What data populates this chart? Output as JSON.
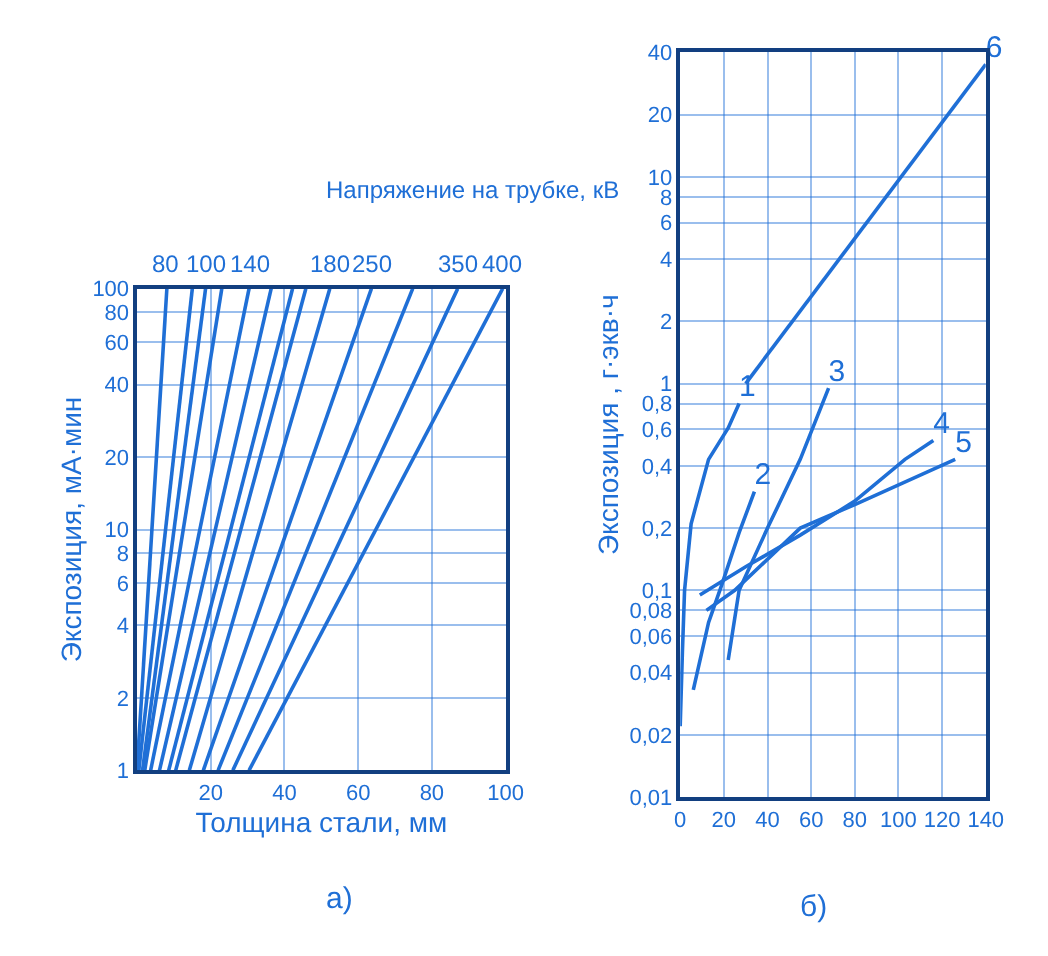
{
  "chart_data": [
    {
      "type": "line",
      "title": "Напряжение на трубке, кВ",
      "xlabel": "Толщина стали, мм",
      "ylabel": "Экспозиция, мА·мин",
      "annotations": [
        "а)",
        {
          "text": "80",
          "x": 8.1,
          "y": 100
        },
        {
          "text": "100",
          "x": 18.6,
          "y": 100
        },
        {
          "text": "140",
          "x": 30.4,
          "y": 100
        },
        {
          "text": "180",
          "x": 52.3,
          "y": 100
        },
        {
          "text": "250",
          "x": 63.6,
          "y": 100
        },
        {
          "text": "350",
          "x": 87,
          "y": 100
        },
        {
          "text": "400",
          "x": 99.2,
          "y": 100
        }
      ],
      "log": "y",
      "grid": true,
      "xlim": [
        0,
        100
      ],
      "xticks": [
        {
          "value": 0,
          "label": null
        },
        20,
        40,
        60,
        80,
        100
      ],
      "ylim": [
        1,
        100
      ],
      "yticks": [
        1,
        2,
        4,
        6,
        8,
        10,
        20,
        40,
        60,
        80,
        100
      ],
      "series": [
        {
          "color": "#1f6fd6",
          "x": [
            0,
            8.1
          ],
          "values": [
            1,
            100
          ]
        },
        {
          "color": "#1f6fd6",
          "x": [
            0.5,
            15
          ],
          "values": [
            1,
            100
          ]
        },
        {
          "color": "#1f6fd6",
          "x": [
            1.5,
            18.6
          ],
          "values": [
            1,
            100
          ]
        },
        {
          "color": "#1f6fd6",
          "x": [
            2.1,
            23
          ],
          "values": [
            1,
            100
          ]
        },
        {
          "color": "#1f6fd6",
          "x": [
            3.7,
            30.4
          ],
          "values": [
            1,
            100
          ]
        },
        {
          "color": "#1f6fd6",
          "x": [
            6.1,
            36.4
          ],
          "values": [
            1,
            100
          ]
        },
        {
          "color": "#1f6fd6",
          "x": [
            8.6,
            42.2
          ],
          "values": [
            1,
            100
          ]
        },
        {
          "color": "#1f6fd6",
          "x": [
            10.5,
            45.8
          ],
          "values": [
            1,
            100
          ]
        },
        {
          "color": "#1f6fd6",
          "x": [
            14.2,
            52.3
          ],
          "values": [
            1,
            100
          ]
        },
        {
          "color": "#1f6fd6",
          "x": [
            18,
            63.6
          ],
          "values": [
            1,
            100
          ]
        },
        {
          "color": "#1f6fd6",
          "x": [
            22,
            74.8
          ],
          "values": [
            1,
            100
          ]
        },
        {
          "color": "#1f6fd6",
          "x": [
            26,
            87
          ],
          "values": [
            1,
            100
          ]
        },
        {
          "color": "#1f6fd6",
          "x": [
            30.4,
            99.2
          ],
          "values": [
            1,
            100
          ]
        }
      ]
    },
    {
      "type": "line",
      "ylabel": "Экспозиция , г·экв·ч",
      "annotations": [
        "б)"
      ],
      "log": "y",
      "grid": true,
      "xlim": [
        0,
        140
      ],
      "xticks": [
        0,
        20,
        40,
        60,
        80,
        100,
        120,
        140
      ],
      "ylim": [
        0.01,
        40
      ],
      "yticks": [
        {
          "value": 0.01,
          "label": "0,01"
        },
        {
          "value": 0.02,
          "label": "0,02"
        },
        {
          "value": 0.04,
          "label": "0,04"
        },
        {
          "value": 0.06,
          "label": "0,06"
        },
        {
          "value": 0.08,
          "label": "0,08"
        },
        {
          "value": 0.1,
          "label": "0,1"
        },
        {
          "value": 0.2,
          "label": "0,2"
        },
        {
          "value": 0.4,
          "label": "0,4"
        },
        {
          "value": 0.6,
          "label": "0,6"
        },
        {
          "value": 0.8,
          "label": "0,8"
        },
        1,
        2,
        4,
        6,
        8,
        10,
        20,
        40
      ],
      "series": [
        {
          "name": "1",
          "color": "#1f6fd6",
          "x": [
            0,
            1,
            2,
            5,
            13,
            22,
            27
          ],
          "values": [
            0.022,
            0.05,
            0.1,
            0.21,
            0.43,
            0.61,
            0.8
          ]
        },
        {
          "name": "2",
          "color": "#1f6fd6",
          "x": [
            6,
            13,
            19,
            27,
            34
          ],
          "values": [
            0.033,
            0.07,
            0.106,
            0.19,
            0.3
          ]
        },
        {
          "name": "3",
          "color": "#1f6fd6",
          "x": [
            22,
            27,
            40,
            55,
            68
          ],
          "values": [
            0.046,
            0.1,
            0.2,
            0.43,
            0.95
          ]
        },
        {
          "name": "4",
          "color": "#1f6fd6",
          "x": [
            9,
            30,
            55,
            80,
            103,
            116
          ],
          "values": [
            0.095,
            0.13,
            0.185,
            0.27,
            0.43,
            0.53
          ]
        },
        {
          "name": "5",
          "color": "#1f6fd6",
          "x": [
            12,
            25,
            55,
            80,
            126
          ],
          "values": [
            0.08,
            0.1,
            0.2,
            0.26,
            0.43
          ]
        },
        {
          "name": "6",
          "color": "#1f6fd6",
          "x": [
            30,
            140
          ],
          "values": [
            1,
            35
          ]
        }
      ]
    }
  ]
}
